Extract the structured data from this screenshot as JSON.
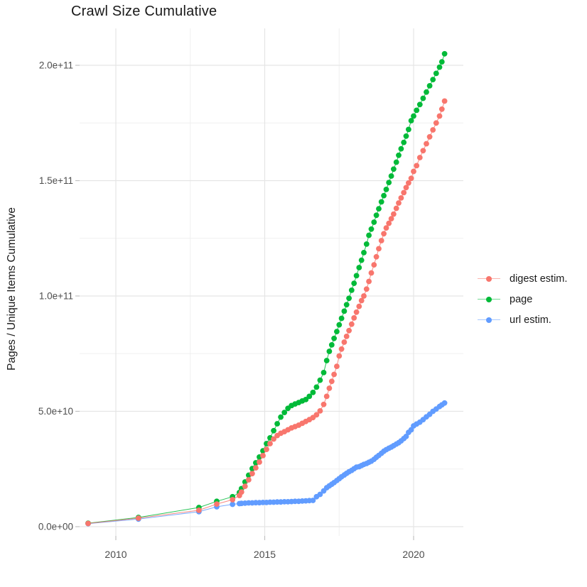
{
  "title": "Crawl Size Cumulative",
  "y_axis": {
    "label": "Pages / Unique Items Cumulative",
    "ticks": [
      {
        "label": "0.0e+00",
        "value": 0
      },
      {
        "label": "5.0e+10",
        "value": 50
      },
      {
        "label": "1.0e+11",
        "value": 100
      },
      {
        "label": "1.5e+11",
        "value": 150
      },
      {
        "label": "2.0e+11",
        "value": 200
      }
    ]
  },
  "x_axis": {
    "ticks": [
      {
        "label": "2010",
        "value": 2010
      },
      {
        "label": "2015",
        "value": 2015
      },
      {
        "label": "2020",
        "value": 2020
      }
    ]
  },
  "legend": {
    "items": [
      {
        "label": "digest estim.",
        "color": "#F8766D"
      },
      {
        "label": "page",
        "color": "#00BA38"
      },
      {
        "label": "url estim.",
        "color": "#619CFF"
      }
    ]
  },
  "chart_data": {
    "type": "line",
    "title": "Crawl Size Cumulative",
    "xlabel": "",
    "ylabel": "Pages / Unique Items Cumulative",
    "x_unit": "decimal year",
    "value_unit": "items x 1e9 (cumulative)",
    "xlim": [
      2008.5,
      2021.7
    ],
    "ylim": [
      0,
      215
    ],
    "x_major": [
      2010,
      2015,
      2020
    ],
    "x_minor": [
      2012.5,
      2017.5
    ],
    "y_major": [
      0,
      50,
      100,
      150,
      200
    ],
    "y_minor": [
      25,
      75,
      125,
      175
    ],
    "grid": true,
    "legend_position": "right",
    "x": [
      2009.07,
      2010.76,
      2012.79,
      2013.39,
      2013.92,
      2014.15,
      2014.22,
      2014.34,
      2014.46,
      2014.58,
      2014.7,
      2014.82,
      2014.94,
      2015.06,
      2015.18,
      2015.3,
      2015.42,
      2015.54,
      2015.66,
      2015.78,
      2015.9,
      2016.02,
      2016.14,
      2016.26,
      2016.38,
      2016.5,
      2016.62,
      2016.74,
      2016.86,
      2016.98,
      2017.08,
      2017.17,
      2017.25,
      2017.33,
      2017.42,
      2017.5,
      2017.58,
      2017.67,
      2017.75,
      2017.83,
      2017.92,
      2018.0,
      2018.08,
      2018.17,
      2018.25,
      2018.33,
      2018.42,
      2018.5,
      2018.58,
      2018.67,
      2018.75,
      2018.83,
      2018.92,
      2019.0,
      2019.08,
      2019.17,
      2019.25,
      2019.33,
      2019.42,
      2019.5,
      2019.58,
      2019.67,
      2019.75,
      2019.83,
      2019.92,
      2020.0,
      2020.1,
      2020.21,
      2020.32,
      2020.43,
      2020.54,
      2020.65,
      2020.76,
      2020.87,
      2020.95,
      2021.04
    ],
    "series": [
      {
        "name": "digest estim.",
        "color": "#F8766D",
        "values": [
          1.4,
          3.7,
          7.1,
          9.8,
          11.7,
          13.5,
          15.0,
          17.5,
          20.3,
          23.0,
          25.5,
          28.0,
          30.8,
          33.5,
          36.0,
          38.0,
          39.5,
          40.5,
          41.2,
          42.0,
          42.8,
          43.4,
          44.0,
          44.8,
          45.6,
          46.4,
          47.3,
          48.5,
          50.2,
          53.0,
          56.5,
          60.0,
          63.0,
          66.0,
          69.5,
          74.0,
          77.0,
          80.0,
          82.5,
          85.0,
          87.8,
          90.5,
          93.0,
          95.5,
          98.0,
          100.0,
          103.0,
          106.3,
          110.0,
          113.5,
          117.0,
          120.5,
          124.0,
          127.0,
          129.5,
          131.5,
          133.5,
          135.5,
          138.0,
          140.3,
          142.5,
          144.8,
          147.0,
          149.0,
          151.0,
          154.0,
          156.5,
          160.0,
          163.0,
          166.0,
          169.0,
          172.0,
          175.0,
          178.0,
          181.0,
          184.5
        ]
      },
      {
        "name": "page",
        "color": "#00BA38",
        "values": [
          1.5,
          4.0,
          8.3,
          11.0,
          13.0,
          14.8,
          16.5,
          19.4,
          22.3,
          25.2,
          27.7,
          30.2,
          32.9,
          36.0,
          38.5,
          41.6,
          44.6,
          47.5,
          49.5,
          51.3,
          52.5,
          53.2,
          53.8,
          54.5,
          55.1,
          56.5,
          58.2,
          60.5,
          63.5,
          66.8,
          72.0,
          76.0,
          78.8,
          81.6,
          84.6,
          87.5,
          90.3,
          93.4,
          96.2,
          99.0,
          102.5,
          105.5,
          108.8,
          112.3,
          115.5,
          118.8,
          122.5,
          126.3,
          129.0,
          132.0,
          135.0,
          137.8,
          140.8,
          143.5,
          146.2,
          149.2,
          152.0,
          155.0,
          158.0,
          161.0,
          163.8,
          166.6,
          169.3,
          172.2,
          176.0,
          178.0,
          180.5,
          183.0,
          185.7,
          188.4,
          191.1,
          193.8,
          196.5,
          199.2,
          201.5,
          205.0
        ]
      },
      {
        "name": "url estim.",
        "color": "#619CFF",
        "values": [
          1.3,
          3.3,
          6.5,
          8.6,
          9.7,
          10.0,
          10.1,
          10.2,
          10.3,
          10.3,
          10.4,
          10.4,
          10.5,
          10.5,
          10.6,
          10.6,
          10.7,
          10.7,
          10.8,
          10.8,
          10.9,
          11.0,
          11.0,
          11.1,
          11.2,
          11.3,
          11.4,
          13.0,
          14.0,
          15.5,
          16.9,
          17.7,
          18.4,
          19.1,
          20.0,
          20.8,
          21.6,
          22.4,
          23.1,
          23.8,
          24.4,
          25.1,
          25.8,
          26.0,
          26.5,
          27.0,
          27.4,
          27.9,
          28.4,
          29.2,
          30.1,
          30.9,
          31.8,
          32.7,
          33.4,
          34.0,
          34.5,
          35.1,
          35.8,
          36.4,
          37.2,
          38.2,
          39.1,
          40.9,
          42.0,
          43.7,
          44.5,
          45.3,
          46.4,
          47.6,
          48.7,
          50.0,
          51.0,
          52.1,
          52.8,
          53.6
        ]
      }
    ]
  }
}
